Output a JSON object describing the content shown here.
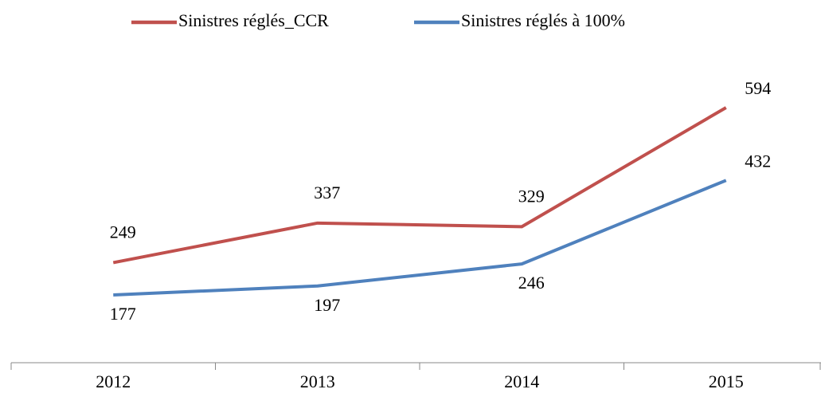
{
  "chart_data": {
    "type": "line",
    "categories": [
      "2012",
      "2013",
      "2014",
      "2015"
    ],
    "series": [
      {
        "name": "Sinistres réglés_CCR",
        "color": "#c0504d",
        "values": [
          249,
          337,
          329,
          594
        ]
      },
      {
        "name": "Sinistres réglés à 100%",
        "color": "#4f81bd",
        "values": [
          177,
          197,
          246,
          432
        ]
      }
    ],
    "legend": "top"
  }
}
